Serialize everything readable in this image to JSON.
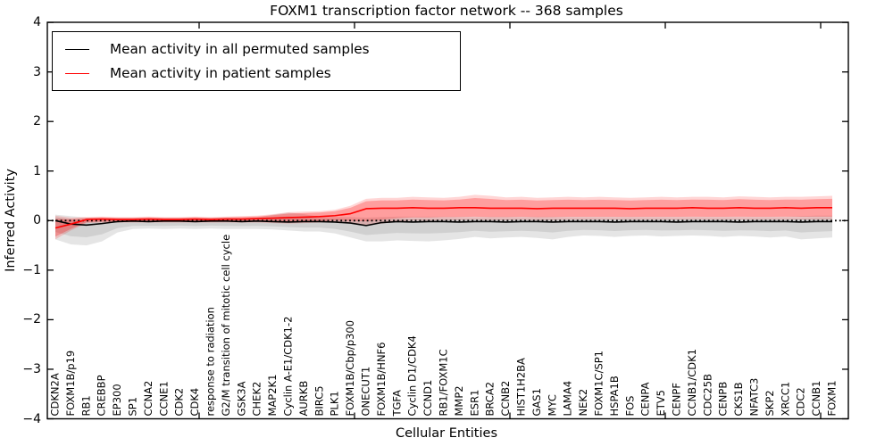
{
  "title": "FOXM1 transcription factor network -- 368 samples",
  "axes": {
    "x_label": "Cellular Entities",
    "y_label": "Inferred Activity",
    "y_tick_labels": [
      "4",
      "3",
      "2",
      "1",
      "0",
      "−1",
      "−2",
      "−3",
      "−4"
    ],
    "y_tick_values": [
      4,
      3,
      2,
      1,
      0,
      -1,
      -2,
      -3,
      -4
    ]
  },
  "legend": {
    "items": [
      {
        "label": "Mean activity in all permuted samples",
        "color": "#000000"
      },
      {
        "label": "Mean activity in patient samples",
        "color": "#ff0000"
      }
    ]
  },
  "chart_data": {
    "type": "line",
    "title": "FOXM1 transcription factor network -- 368 samples",
    "xlabel": "Cellular Entities",
    "ylabel": "Inferred Activity",
    "ylim": [
      -4,
      4
    ],
    "grid": false,
    "legend_position": "upper left",
    "zero_line": {
      "y": 0,
      "style": "dotted",
      "color": "#000000"
    },
    "categories": [
      "CDKN2A",
      "FOXM1B/p19",
      "RB1",
      "CREBBP",
      "EP300",
      "SP1",
      "CCNA2",
      "CCNE1",
      "CDK2",
      "CDK4",
      "response to radiation",
      "G2/M transition of mitotic cell cycle",
      "GSK3A",
      "CHEK2",
      "MAP2K1",
      "Cyclin A-E1/CDK1-2",
      "AURKB",
      "BIRC5",
      "PLK1",
      "FOXM1B/Cbp/p300",
      "ONECUT1",
      "FOXM1B/HNF6",
      "TGFA",
      "Cyclin D1/CDK4",
      "CCND1",
      "RB1/FOXM1C",
      "MMP2",
      "ESR1",
      "BRCA2",
      "CCNB2",
      "HIST1H2BA",
      "GAS1",
      "MYC",
      "LAMA4",
      "NEK2",
      "FOXM1C/SP1",
      "HSPA1B",
      "FOS",
      "CENPA",
      "ETV5",
      "CENPF",
      "CCNB1/CDK1",
      "CDC25B",
      "CENPB",
      "CKS1B",
      "NFATC3",
      "SKP2",
      "XRCC1",
      "CDC2",
      "CCNB1",
      "FOXM1"
    ],
    "series": [
      {
        "name": "Mean activity in all permuted samples",
        "color": "#000000",
        "band_color_outer": "rgba(0,0,0,0.10)",
        "band_color_inner": "rgba(0,0,0,0.09)",
        "band_inner_scale": 0.6,
        "values": [
          0.0,
          -0.07,
          -0.09,
          -0.06,
          -0.02,
          -0.01,
          -0.02,
          -0.01,
          -0.01,
          -0.02,
          -0.01,
          -0.01,
          -0.02,
          -0.01,
          -0.02,
          -0.03,
          -0.02,
          -0.02,
          -0.03,
          -0.05,
          -0.1,
          -0.04,
          -0.02,
          -0.03,
          -0.02,
          -0.02,
          -0.03,
          -0.02,
          -0.02,
          -0.03,
          -0.02,
          -0.02,
          -0.03,
          -0.02,
          -0.02,
          -0.02,
          -0.03,
          -0.02,
          -0.02,
          -0.02,
          -0.03,
          -0.02,
          -0.02,
          -0.02,
          -0.03,
          -0.02,
          -0.02,
          -0.02,
          -0.03,
          -0.02,
          -0.02
        ],
        "band_lo": [
          -0.38,
          -0.48,
          -0.5,
          -0.42,
          -0.24,
          -0.17,
          -0.16,
          -0.17,
          -0.16,
          -0.17,
          -0.16,
          -0.17,
          -0.17,
          -0.17,
          -0.18,
          -0.2,
          -0.22,
          -0.22,
          -0.26,
          -0.34,
          -0.42,
          -0.42,
          -0.4,
          -0.41,
          -0.42,
          -0.4,
          -0.37,
          -0.33,
          -0.36,
          -0.34,
          -0.33,
          -0.35,
          -0.38,
          -0.33,
          -0.3,
          -0.31,
          -0.33,
          -0.31,
          -0.3,
          -0.32,
          -0.31,
          -0.3,
          -0.31,
          -0.33,
          -0.31,
          -0.32,
          -0.34,
          -0.32,
          -0.38,
          -0.36,
          -0.34
        ],
        "band_hi": [
          0.12,
          0.09,
          0.06,
          0.05,
          0.05,
          0.05,
          0.05,
          0.05,
          0.05,
          0.05,
          0.05,
          0.06,
          0.05,
          0.06,
          0.12,
          0.16,
          0.13,
          0.08,
          0.07,
          0.07,
          0.06,
          0.07,
          0.08,
          0.08,
          0.08,
          0.08,
          0.08,
          0.08,
          0.08,
          0.08,
          0.08,
          0.08,
          0.08,
          0.08,
          0.08,
          0.08,
          0.08,
          0.08,
          0.08,
          0.08,
          0.08,
          0.08,
          0.08,
          0.08,
          0.08,
          0.08,
          0.08,
          0.08,
          0.09,
          0.1,
          0.1
        ]
      },
      {
        "name": "Mean activity in patient samples",
        "color": "#ff0000",
        "band_color_outer": "rgba(255,0,0,0.16)",
        "band_color_inner": "rgba(255,0,0,0.26)",
        "band_inner_scale": 0.75,
        "values": [
          -0.15,
          -0.07,
          0.02,
          0.03,
          0.02,
          0.02,
          0.03,
          0.02,
          0.02,
          0.03,
          0.02,
          0.03,
          0.03,
          0.04,
          0.05,
          0.06,
          0.07,
          0.08,
          0.1,
          0.14,
          0.24,
          0.25,
          0.25,
          0.26,
          0.25,
          0.25,
          0.26,
          0.26,
          0.25,
          0.25,
          0.25,
          0.24,
          0.25,
          0.25,
          0.25,
          0.25,
          0.25,
          0.24,
          0.25,
          0.25,
          0.25,
          0.26,
          0.25,
          0.25,
          0.26,
          0.25,
          0.25,
          0.26,
          0.25,
          0.26,
          0.26
        ],
        "band_lo": [
          -0.38,
          -0.2,
          -0.05,
          -0.04,
          -0.04,
          -0.04,
          -0.04,
          -0.04,
          -0.04,
          -0.04,
          -0.04,
          -0.04,
          -0.04,
          -0.04,
          -0.05,
          -0.06,
          -0.05,
          -0.04,
          -0.03,
          -0.05,
          -0.1,
          -0.06,
          -0.02,
          0.0,
          0.0,
          0.01,
          0.01,
          0.02,
          0.01,
          0.01,
          0.02,
          0.01,
          0.01,
          0.02,
          0.02,
          0.02,
          0.02,
          0.02,
          0.02,
          0.02,
          0.02,
          0.02,
          0.02,
          0.02,
          0.02,
          0.02,
          0.02,
          0.02,
          0.02,
          0.02,
          0.02
        ],
        "band_hi": [
          0.1,
          0.06,
          0.07,
          0.08,
          0.07,
          0.07,
          0.08,
          0.07,
          0.07,
          0.08,
          0.07,
          0.08,
          0.09,
          0.1,
          0.13,
          0.17,
          0.18,
          0.19,
          0.22,
          0.3,
          0.44,
          0.46,
          0.46,
          0.48,
          0.47,
          0.46,
          0.48,
          0.52,
          0.5,
          0.47,
          0.48,
          0.46,
          0.47,
          0.48,
          0.47,
          0.48,
          0.47,
          0.46,
          0.47,
          0.48,
          0.47,
          0.48,
          0.48,
          0.47,
          0.49,
          0.48,
          0.47,
          0.48,
          0.48,
          0.49,
          0.5
        ]
      }
    ]
  }
}
